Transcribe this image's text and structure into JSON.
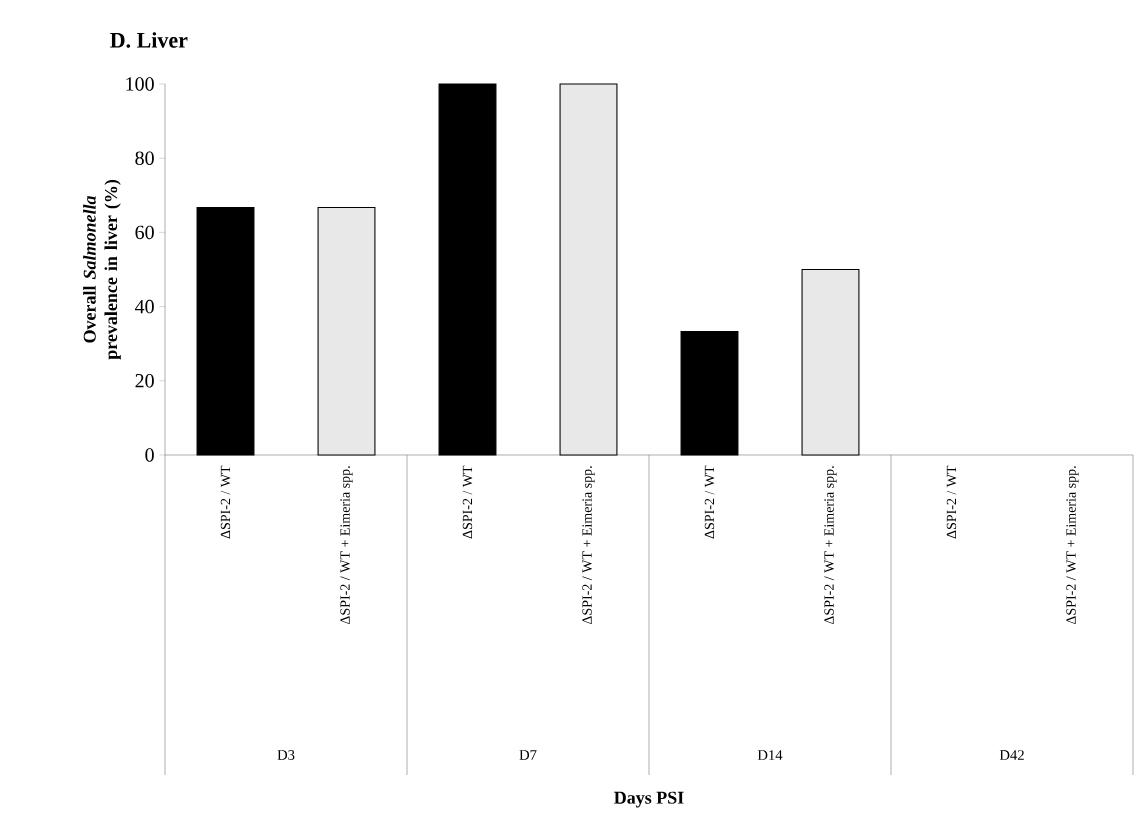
{
  "chart_data": {
    "type": "bar",
    "title": "D. Liver",
    "ylabel": "Overall *Salmonella* prevalence in liver (%)",
    "categories": [
      "ΔSPI-2 / WT",
      "ΔSPI-2 / WT + Eimeria spp.",
      "ΔSPI-2 / WT",
      "ΔSPI-2 / WT + Eimeria spp.",
      "ΔSPI-2 / WT",
      "ΔSPI-2 / WT + Eimeria spp.",
      "ΔSPI-2 / WT",
      "ΔSPI-2 / WT + Eimeria spp."
    ],
    "values": [
      66.7,
      66.7,
      100,
      100,
      33.3,
      50,
      0,
      0
    ],
    "colors": [
      "#000000",
      "#e8e8e8",
      "#000000",
      "#e8e8e8",
      "#000000",
      "#e8e8e8",
      "#000000",
      "#e8e8e8"
    ],
    "ylim": [
      0,
      100
    ],
    "yticks": [
      0,
      20,
      40,
      60,
      80,
      100
    ],
    "grid": false,
    "annotations": [
      "D3",
      "D7",
      "D14",
      "D42",
      "**Days PSI**"
    ]
  }
}
